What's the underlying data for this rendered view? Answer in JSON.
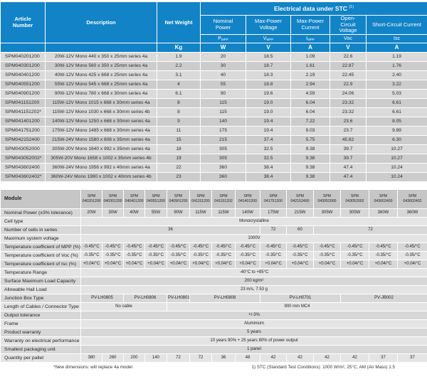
{
  "top_table": {
    "headers": {
      "article": "Article Number",
      "description": "Description",
      "net_weight": "Net Weight",
      "weight_unit": "Kg",
      "electrical_title": "Electrical data under STC",
      "electrical_title_note": "(1)",
      "columns": [
        {
          "name": "Nominal Power",
          "symbol_base": "P",
          "symbol_sub": "MPP",
          "unit": "W"
        },
        {
          "name": "Max-Power Voltage",
          "symbol_base": "V",
          "symbol_sub": "MPP",
          "unit": "V"
        },
        {
          "name": "Max-Power Current",
          "symbol_base": "I",
          "symbol_sub": "MPP",
          "unit": "A"
        },
        {
          "name": "Open-Circuit Voltage",
          "symbol_base": "V",
          "symbol_sub": "oc",
          "unit": "V"
        },
        {
          "name": "Short-Circuit Current",
          "symbol_base": "I",
          "symbol_sub": "sc",
          "unit": "A"
        }
      ]
    },
    "rows": [
      [
        "SPM040201200",
        "20W-12V Mono 440 x 350 x 25mm series 4a",
        "1.9",
        "20",
        "18.5",
        "1.09",
        "22.6",
        "1.19"
      ],
      [
        "SPM040301200",
        "30W-12V Mono 560 x 350 x 25mm series 4a",
        "2.2",
        "30",
        "18.7",
        "1.61",
        "22.87",
        "1.76"
      ],
      [
        "SPM040401200",
        "40W-12V Mono 425 x 668 x 25mm series 4a",
        "3.1",
        "40",
        "18.3",
        "2.19",
        "22.45",
        "2.40"
      ],
      [
        "SPM040551200",
        "55W-12V Mono 545 x 668 x 25mm series 4a",
        "4",
        "55",
        "18.8",
        "2.94",
        "22.9",
        "3.22"
      ],
      [
        "SPM040901200",
        "90W-12V Mono 780 x 668 x 30mm series 4a",
        "6.1",
        "90",
        "19.6",
        "4.59",
        "24.06",
        "5.03"
      ],
      [
        "SPM041151200",
        "115W-12V Mono 1015 x 668 x 30mm series 4a",
        "8",
        "115",
        "19.0",
        "6.04",
        "23.32",
        "6.61"
      ],
      [
        "SPM041151202*",
        "115W-12V Mono 1030 x 668 x 30mm series 4b",
        "8",
        "115",
        "19.0",
        "6.04",
        "23.32",
        "6.61"
      ],
      [
        "SPM041401200",
        "140W-12V Mono 1250 x 668 x 30mm series 4a",
        "9",
        "140",
        "19.4",
        "7.22",
        "23.6",
        "8.05"
      ],
      [
        "SPM041751200",
        "175W-12V Mono 1485 x 668 x 30mm series 4a",
        "11",
        "175",
        "19.4",
        "9.03",
        "23.7",
        "9.89"
      ],
      [
        "SPM042152400",
        "215W-24V Mono 1580 x 808 x 35mm series 4a",
        "15",
        "215",
        "37.4",
        "5.75",
        "45.82",
        "6.30"
      ],
      [
        "SPM043052000",
        "305W-20V Mono 1640 x 992 x 35mm series 4a",
        "18",
        "305",
        "32.5",
        "9.38",
        "39.7",
        "10.27"
      ],
      [
        "SPM043052002*",
        "305W-20V Mono 1658 x 1002 x 35mm series 4b",
        "19",
        "305",
        "32.5",
        "9.38",
        "39.7",
        "10.27"
      ],
      [
        "SPM043602400",
        "360W-24V Mono 1956 x 992 x 40mm series 4a",
        "22",
        "360",
        "38.4",
        "9.38",
        "47.4",
        "10.24"
      ],
      [
        "SPM043602402*",
        "360W-24V Mono 1980 x 1002 x 40mm series 4b",
        "23",
        "360",
        "38.4",
        "9.38",
        "47.4",
        "10.24"
      ]
    ]
  },
  "spec_table": {
    "module_label": "Module",
    "module_columns": [
      {
        "line1": "SPM",
        "line2": "040201200"
      },
      {
        "line1": "SPM",
        "line2": "040301200"
      },
      {
        "line1": "SPM",
        "line2": "040401200"
      },
      {
        "line1": "SPM",
        "line2": "040551200"
      },
      {
        "line1": "SPM",
        "line2": "040901200"
      },
      {
        "line1": "SPM",
        "line2": "041151200"
      },
      {
        "line1": "SPM",
        "line2": "041151202"
      },
      {
        "line1": "SPM",
        "line2": "041401200"
      },
      {
        "line1": "SPM",
        "line2": "041751200"
      },
      {
        "line1": "SPM",
        "line2": "042152400"
      },
      {
        "line1": "SPM",
        "line2": "043052000"
      },
      {
        "line1": "SPM",
        "line2": "043052002"
      },
      {
        "line1": "SPM",
        "line2": "043602400"
      },
      {
        "line1": "SPM",
        "line2": "043602402"
      }
    ],
    "rows": [
      {
        "label": "Nominal Power  (±3% tolerance)",
        "cells": [
          {
            "t": "20W",
            "s": 1
          },
          {
            "t": "30W",
            "s": 1
          },
          {
            "t": "40W",
            "s": 1
          },
          {
            "t": "55W",
            "s": 1
          },
          {
            "t": "90W",
            "s": 1
          },
          {
            "t": "115W",
            "s": 1
          },
          {
            "t": "115W",
            "s": 1
          },
          {
            "t": "140W",
            "s": 1
          },
          {
            "t": "175W",
            "s": 1
          },
          {
            "t": "215W",
            "s": 1
          },
          {
            "t": "305W",
            "s": 1
          },
          {
            "t": "305W",
            "s": 1
          },
          {
            "t": "360W",
            "s": 1
          },
          {
            "t": "360W",
            "s": 1
          }
        ]
      },
      {
        "label": "Cell type",
        "cells": [
          {
            "t": "Monocrystalline",
            "s": 14
          }
        ]
      },
      {
        "label": "Number of cells in series",
        "cells": [
          {
            "t": "36",
            "s": 8
          },
          {
            "t": "72",
            "s": 1
          },
          {
            "t": "60",
            "s": 1
          },
          {
            "t": "72",
            "s": 4
          }
        ]
      },
      {
        "label": "Maximum system voltage",
        "cells": [
          {
            "t": "1000V",
            "s": 14
          }
        ]
      },
      {
        "label": "Temperature coefficient of MPP (%)",
        "cells": [
          {
            "t": "-0.45/°C",
            "s": 1
          },
          {
            "t": "-0.45/°C",
            "s": 1
          },
          {
            "t": "-0.45/°C",
            "s": 1
          },
          {
            "t": "-0.45/°C",
            "s": 1
          },
          {
            "t": "-0.45/°C",
            "s": 1
          },
          {
            "t": "-0.45/°C",
            "s": 1
          },
          {
            "t": "-0.45/°C",
            "s": 1
          },
          {
            "t": "-0.45/°C",
            "s": 1
          },
          {
            "t": "-0.45/°C",
            "s": 1
          },
          {
            "t": "-0.45/°C",
            "s": 1
          },
          {
            "t": "-0.45/°C",
            "s": 1
          },
          {
            "t": "-0.45/°C",
            "s": 1
          },
          {
            "t": "-0.45/°C",
            "s": 1
          },
          {
            "t": "-0.45/°C",
            "s": 1
          }
        ]
      },
      {
        "label": "Temperature coefficient of Voc (%)",
        "cells": [
          {
            "t": "-0.35/°C",
            "s": 1
          },
          {
            "t": "-0.35/°C",
            "s": 1
          },
          {
            "t": "-0.35/°C",
            "s": 1
          },
          {
            "t": "-0.35/°C",
            "s": 1
          },
          {
            "t": "-0.35/°C",
            "s": 1
          },
          {
            "t": "-0.35/°C",
            "s": 1
          },
          {
            "t": "-0.35/°C",
            "s": 1
          },
          {
            "t": "-0.35/°C",
            "s": 1
          },
          {
            "t": "-0.35/°C",
            "s": 1
          },
          {
            "t": "-0.35/°C",
            "s": 1
          },
          {
            "t": "-0.35/°C",
            "s": 1
          },
          {
            "t": "-0.35/°C",
            "s": 1
          },
          {
            "t": "-0.35/°C",
            "s": 1
          },
          {
            "t": "-0.35/°C",
            "s": 1
          }
        ]
      },
      {
        "label": "Temperature coefficient of Isc (%)",
        "cells": [
          {
            "t": "+0.04/°C",
            "s": 1
          },
          {
            "t": "+0.04/°C",
            "s": 1
          },
          {
            "t": "+0.04/°C",
            "s": 1
          },
          {
            "t": "+0.04/°C",
            "s": 1
          },
          {
            "t": "+0.04/°C",
            "s": 1
          },
          {
            "t": "+0.04/°C",
            "s": 1
          },
          {
            "t": "+0.04/°C",
            "s": 1
          },
          {
            "t": "+0.04/°C",
            "s": 1
          },
          {
            "t": "+0.04/°C",
            "s": 1
          },
          {
            "t": "+0.04/°C",
            "s": 1
          },
          {
            "t": "+0.04/°C",
            "s": 1
          },
          {
            "t": "+0.04/°C",
            "s": 1
          },
          {
            "t": "+0.04/°C",
            "s": 1
          },
          {
            "t": "+0.04/°C",
            "s": 1
          }
        ]
      },
      {
        "label": "Temperature Range",
        "cells": [
          {
            "t": "-40°C to +85°C",
            "s": 14
          }
        ]
      },
      {
        "label": "Surface Maximum Load Capacity",
        "cells": [
          {
            "t": "200 kg/m²",
            "s": 14
          }
        ]
      },
      {
        "label": "Allowable Hail Load",
        "cells": [
          {
            "t": "23 m/s, 7.53 g",
            "s": 14
          }
        ]
      },
      {
        "label": "Junction Box Type",
        "cells": [
          {
            "t": "PV-LH0805",
            "s": 2
          },
          {
            "t": "PV-LH0806",
            "s": 2
          },
          {
            "t": "PV-LH0801",
            "s": 1
          },
          {
            "t": "PV-LH0808",
            "s": 3
          },
          {
            "t": "PV-LH0701",
            "s": 3
          },
          {
            "t": "PV-JB002",
            "s": 3
          }
        ]
      },
      {
        "label": "Length of Cables / Connector Type",
        "cells": [
          {
            "t": "No cable",
            "s": 4
          },
          {
            "t": "900 mm MC4",
            "s": 10
          }
        ]
      },
      {
        "label": "Output tolerance",
        "cells": [
          {
            "t": "+/-3%",
            "s": 14
          }
        ]
      },
      {
        "label": "Frame",
        "cells": [
          {
            "t": "Aluminium",
            "s": 14
          }
        ]
      },
      {
        "label": "Product warranty",
        "cells": [
          {
            "t": "5 years",
            "s": 14
          }
        ]
      },
      {
        "label": "Warranty on electrical performance",
        "cells": [
          {
            "t": "10 years 90% + 25 years 80% of power output",
            "s": 14
          }
        ]
      },
      {
        "label": "Smallest packaging unit",
        "cells": [
          {
            "t": "1 panel",
            "s": 14
          }
        ]
      },
      {
        "label": "Quantity per pallet",
        "cells": [
          {
            "t": "380",
            "s": 1
          },
          {
            "t": "260",
            "s": 1
          },
          {
            "t": "200",
            "s": 1
          },
          {
            "t": "140",
            "s": 1
          },
          {
            "t": "72",
            "s": 1
          },
          {
            "t": "72",
            "s": 1
          },
          {
            "t": "36",
            "s": 1
          },
          {
            "t": "48",
            "s": 1
          },
          {
            "t": "42",
            "s": 1
          },
          {
            "t": "42",
            "s": 1
          },
          {
            "t": "42",
            "s": 1
          },
          {
            "t": "42",
            "s": 1
          },
          {
            "t": "37",
            "s": 1
          },
          {
            "t": "37",
            "s": 1
          }
        ]
      }
    ]
  },
  "footnotes": {
    "left": "*New dimensions: will replace 4a model",
    "right": "1) STC (Standard Test Conditions): 1000 W/m², 25°C, AM (Air Mass) 1.5"
  },
  "colors": {
    "header_blue": "#1283c6",
    "row_dark": "#cccccc",
    "row_light": "#dadada"
  }
}
